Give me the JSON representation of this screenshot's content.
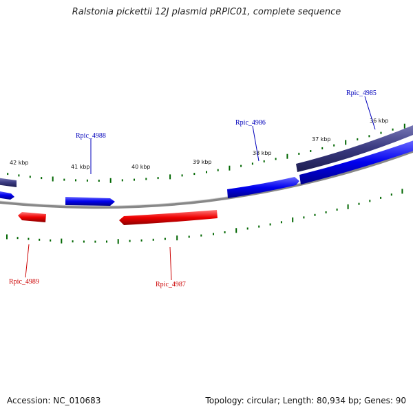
{
  "title": "Ralstonia pickettii 12J plasmid pRPIC01, complete sequence",
  "accession_text": "Accession: NC_010683",
  "summary_text": "Topology: circular; Length: 80,934 bp; Genes: 90",
  "scale_labels": [
    "42 kbp",
    "41 kbp",
    "40 kbp",
    "39 kbp",
    "38 kbp",
    "37 kbp",
    "36 kbp"
  ],
  "genes_forward": [
    "Rpic_4988",
    "Rpic_4986",
    "Rpic_4985"
  ],
  "genes_reverse": [
    "Rpic_4989",
    "Rpic_4987"
  ],
  "colors": {
    "forward": "#0000ee",
    "reverse": "#ee0000",
    "forward_label": "#0000bb",
    "reverse_label": "#cc0000",
    "ticks": "#006600",
    "backbone": "#888888",
    "outer_band": "#3a3a80"
  }
}
